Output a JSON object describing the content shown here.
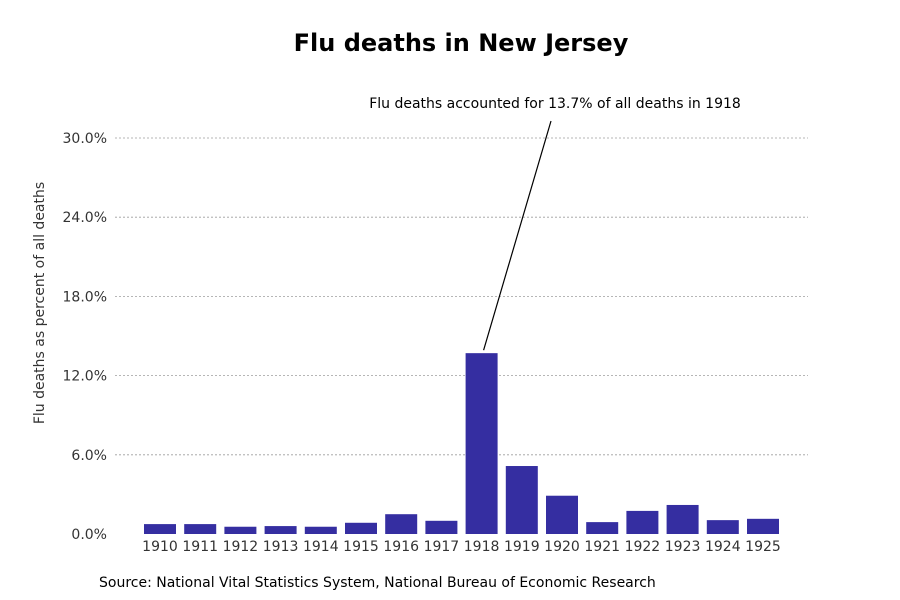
{
  "chart_data": {
    "type": "bar",
    "title": "Flu deaths in New Jersey",
    "xlabel": "",
    "ylabel": "Flu deaths as percent of all deaths",
    "categories": [
      "1910",
      "1911",
      "1912",
      "1913",
      "1914",
      "1915",
      "1916",
      "1917",
      "1918",
      "1919",
      "1920",
      "1921",
      "1922",
      "1923",
      "1924",
      "1925"
    ],
    "values": [
      0.75,
      0.75,
      0.55,
      0.6,
      0.55,
      0.85,
      1.5,
      1.0,
      13.7,
      5.15,
      2.9,
      0.9,
      1.75,
      2.2,
      1.05,
      1.15
    ],
    "ylim": [
      0,
      30
    ],
    "yticks": [
      "0.0%",
      "6.0%",
      "12.0%",
      "18.0%",
      "24.0%",
      "30.0%"
    ],
    "ytick_values": [
      0,
      6,
      12,
      18,
      24,
      30
    ],
    "grid": true,
    "annotation": {
      "text": "Flu deaths accounted for 13.7% of all deaths in 1918",
      "category": "1918",
      "value": 13.7
    },
    "source": "Source: National Vital Statistics System, National Bureau of Economic Research",
    "bar_color": "#352ea1"
  }
}
